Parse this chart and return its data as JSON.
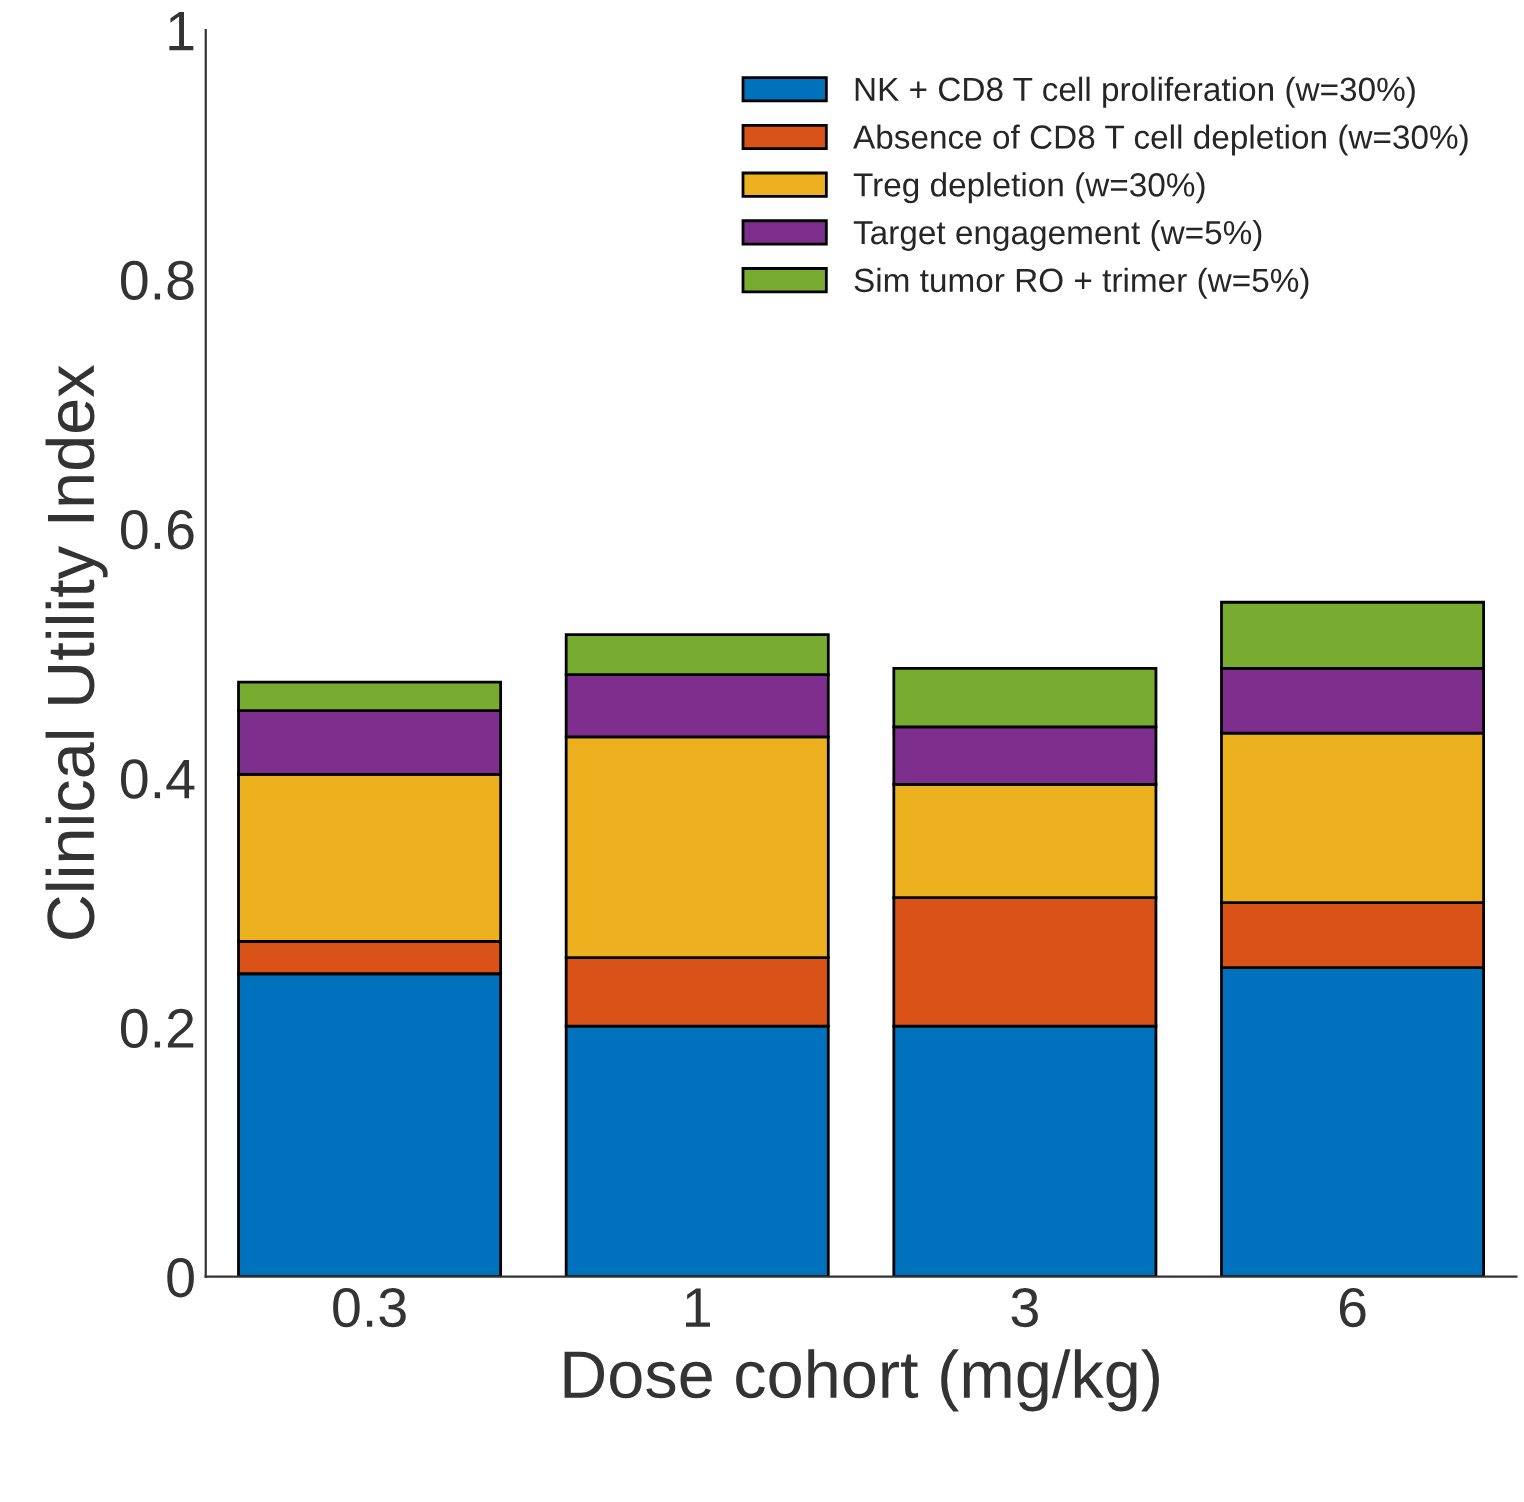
{
  "chart_data": {
    "type": "bar",
    "stacked": true,
    "xlabel": "Dose cohort (mg/kg)",
    "ylabel": "Clinical Utility Index",
    "categories": [
      "0.3",
      "1",
      "3",
      "6"
    ],
    "series": [
      {
        "name": "NK + CD8 T cell proliferation (w=30%)",
        "color": "#0072bd",
        "values": [
          0.243,
          0.201,
          0.201,
          0.248
        ]
      },
      {
        "name": "Absence of CD8 T cell depletion (w=30%)",
        "color": "#d95319",
        "values": [
          0.026,
          0.055,
          0.103,
          0.052
        ]
      },
      {
        "name": "Treg depletion (w=30%)",
        "color": "#edb120",
        "values": [
          0.134,
          0.177,
          0.091,
          0.136
        ]
      },
      {
        "name": "Target engagement (w=5%)",
        "color": "#7e2f8e",
        "values": [
          0.051,
          0.05,
          0.046,
          0.052
        ]
      },
      {
        "name": "Sim tumor RO + trimer (w=5%)",
        "color": "#77ac30",
        "values": [
          0.023,
          0.032,
          0.047,
          0.053
        ]
      }
    ],
    "ylim": [
      0,
      1
    ],
    "yticks": [
      0,
      0.2,
      0.4,
      0.6,
      0.8,
      1
    ],
    "legend": "top right",
    "grid": false
  }
}
